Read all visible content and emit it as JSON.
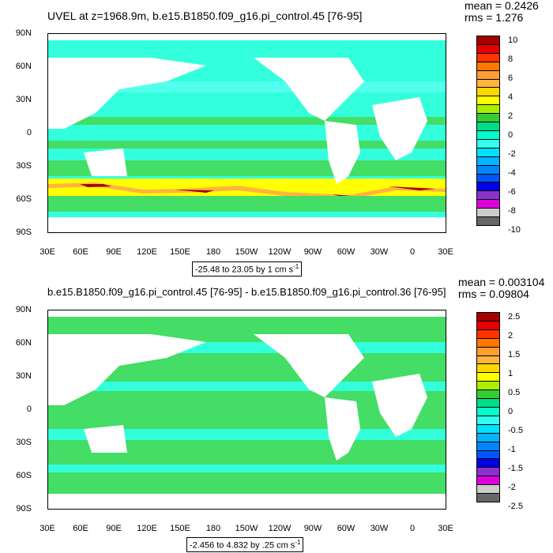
{
  "top": {
    "title": "UVEL at z=1968.9m, b.e15.B1850.f09_g16.pi_control.45 [76-95]",
    "mean": "mean = 0.2426",
    "rms": "rms = 1.276",
    "contour_info": "-25.48 to 23.05 by 1 cm s",
    "contour_sup": "-1",
    "colorbar_labels": [
      "10",
      "8",
      "6",
      "4",
      "2",
      "0",
      "-2",
      "-4",
      "-6",
      "-8",
      "-10"
    ]
  },
  "bottom": {
    "title": "b.e15.B1850.f09_g16.pi_control.45 [76-95] - b.e15.B1850.f09_g16.pi_control.36 [76-95]",
    "mean": "mean = 0.003104",
    "rms": "rms = 0.09804",
    "contour_info": "-2.456 to 4.832 by .25 cm s",
    "contour_sup": "-1",
    "colorbar_labels": [
      "2.5",
      "2",
      "1.5",
      "1",
      "0.5",
      "0",
      "-0.5",
      "-1",
      "-1.5",
      "-2",
      "-2.5"
    ]
  },
  "axes": {
    "lat_labels": [
      "90N",
      "60N",
      "30N",
      "0",
      "30S",
      "60S",
      "90S"
    ],
    "lon_labels": [
      "30E",
      "60E",
      "90E",
      "120E",
      "150E",
      "180",
      "150W",
      "120W",
      "90W",
      "60W",
      "30W",
      "0",
      "30E"
    ]
  },
  "colorbar_colors": [
    "#a50000",
    "#e60000",
    "#ff3300",
    "#ff7700",
    "#ff9d33",
    "#ffb43f",
    "#ffd700",
    "#ffff00",
    "#aaee00",
    "#33cc33",
    "#00dd88",
    "#00ffcc",
    "#33ffee",
    "#00e1ff",
    "#00b4ff",
    "#0087ff",
    "#0055ff",
    "#0000e6",
    "#8833cc",
    "#dd00dd",
    "#cccccc",
    "#666666"
  ],
  "colors": {
    "ocean_base": "#33ffdd",
    "ocean_light": "#55ffee",
    "band_green": "#44dd66",
    "land": "#ffffff",
    "jet_yellow": "#ffff00",
    "jet_orange": "#ffb43f",
    "jet_red": "#e60000",
    "jet_dark": "#a50000"
  }
}
